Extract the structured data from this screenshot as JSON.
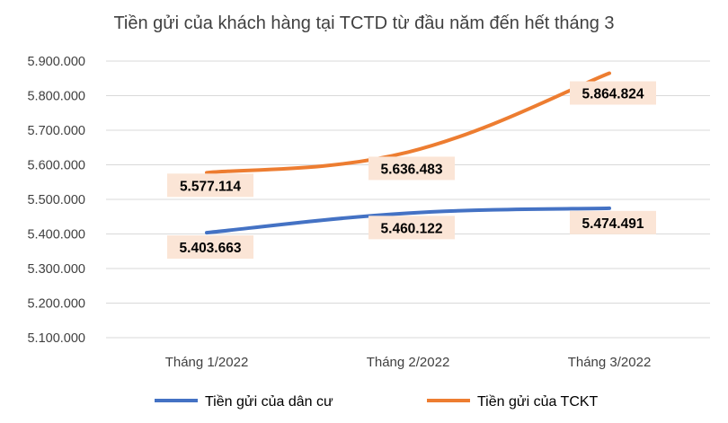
{
  "chart_data": {
    "type": "line",
    "title": "Tiền gửi của khách hàng tại TCTD từ đầu năm đến hết tháng 3",
    "categories": [
      "Tháng 1/2022",
      "Tháng 2/2022",
      "Tháng 3/2022"
    ],
    "y_ticks": [
      "5.100.000",
      "5.200.000",
      "5.300.000",
      "5.400.000",
      "5.500.000",
      "5.600.000",
      "5.700.000",
      "5.800.000",
      "5.900.000"
    ],
    "ylim": [
      5100000,
      5900000
    ],
    "grid": true,
    "legend_position": "bottom",
    "series": [
      {
        "name": "Tiền gửi của dân cư",
        "color": "#4472C4",
        "values": [
          5403663,
          5460122,
          5474491
        ],
        "labels": [
          "5.403.663",
          "5.460.122",
          "5.474.491"
        ]
      },
      {
        "name": "Tiền gửi của TCKT",
        "color": "#ED7D31",
        "values": [
          5577114,
          5636483,
          5864824
        ],
        "labels": [
          "5.577.114",
          "5.636.483",
          "5.864.824"
        ]
      }
    ],
    "data_label_background": "#FBE5D6"
  }
}
